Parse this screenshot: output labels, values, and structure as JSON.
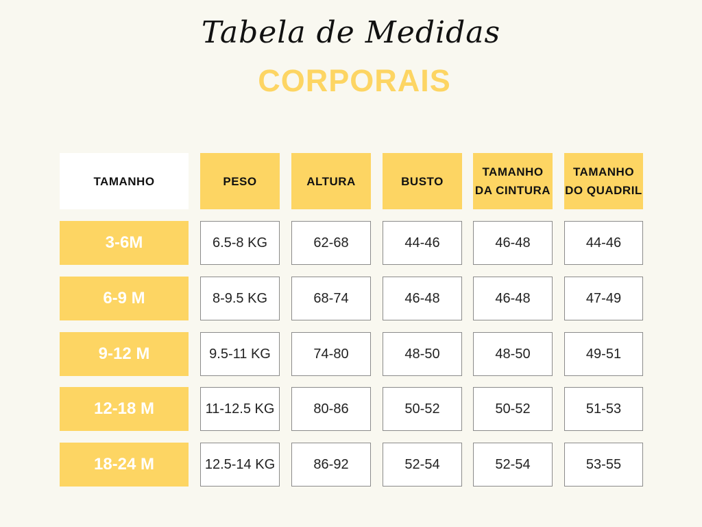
{
  "title": "Tabela de Medidas",
  "subtitle": "CORPORAIS",
  "headers": [
    "TAMANHO",
    "PESO",
    "ALTURA",
    "BUSTO",
    "TAMANHO DA CINTURA",
    "TAMANHO DO QUADRIL"
  ],
  "rows": [
    {
      "size": "3-6M",
      "values": [
        "6.5-8 KG",
        "62-68",
        "44-46",
        "46-48",
        "44-46"
      ]
    },
    {
      "size": "6-9 M",
      "values": [
        "8-9.5 KG",
        "68-74",
        "46-48",
        "46-48",
        "47-49"
      ]
    },
    {
      "size": "9-12 M",
      "values": [
        "9.5-11 KG",
        "74-80",
        "48-50",
        "48-50",
        "49-51"
      ]
    },
    {
      "size": "12-18 M",
      "values": [
        "11-12.5 KG",
        "80-86",
        "50-52",
        "50-52",
        "51-53"
      ]
    },
    {
      "size": "18-24 M",
      "values": [
        "12.5-14 KG",
        "86-92",
        "52-54",
        "52-54",
        "53-55"
      ]
    }
  ],
  "colors": {
    "background": "#f9f8f0",
    "accent": "#fdd563",
    "cell": "#ffffff",
    "border": "#8a8a8a"
  }
}
